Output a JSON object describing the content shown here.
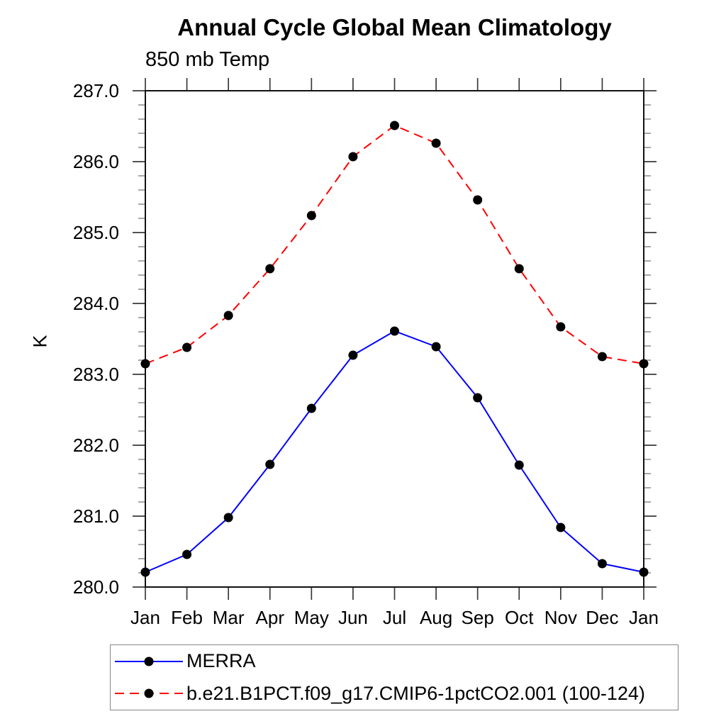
{
  "title": "Annual Cycle Global Mean Climatology",
  "subtitle": "850 mb Temp",
  "y_axis_label": "K",
  "chart_data": {
    "type": "line",
    "title": "Annual Cycle Global Mean Climatology",
    "subtitle": "850 mb Temp",
    "xlabel": "",
    "ylabel": "K",
    "ylim": [
      280.0,
      287.0
    ],
    "y_major_step": 1.0,
    "y_minor_step": 0.2,
    "y_tick_labels": [
      "280.0",
      "281.0",
      "282.0",
      "283.0",
      "284.0",
      "285.0",
      "286.0",
      "287.0"
    ],
    "categories": [
      "Jan",
      "Feb",
      "Mar",
      "Apr",
      "May",
      "Jun",
      "Jul",
      "Aug",
      "Sep",
      "Oct",
      "Nov",
      "Dec",
      "Jan"
    ],
    "grid": false,
    "legend_position": "bottom-left-box",
    "series": [
      {
        "name": "MERRA",
        "line_color": "#0000ff",
        "line_style": "solid",
        "marker": "filled-circle",
        "marker_color": "#000000",
        "values": [
          280.21,
          280.46,
          280.98,
          281.73,
          282.52,
          283.27,
          283.61,
          283.39,
          282.67,
          281.72,
          280.84,
          280.33,
          280.21
        ]
      },
      {
        "name": "b.e21.B1PCT.f09_g17.CMIP6-1pctCO2.001 (100-124)",
        "line_color": "#ff0000",
        "line_style": "dashed",
        "marker": "filled-circle",
        "marker_color": "#000000",
        "values": [
          283.15,
          283.38,
          283.83,
          284.49,
          285.24,
          286.07,
          286.51,
          286.26,
          285.46,
          284.49,
          283.67,
          283.25,
          283.15
        ]
      }
    ]
  }
}
